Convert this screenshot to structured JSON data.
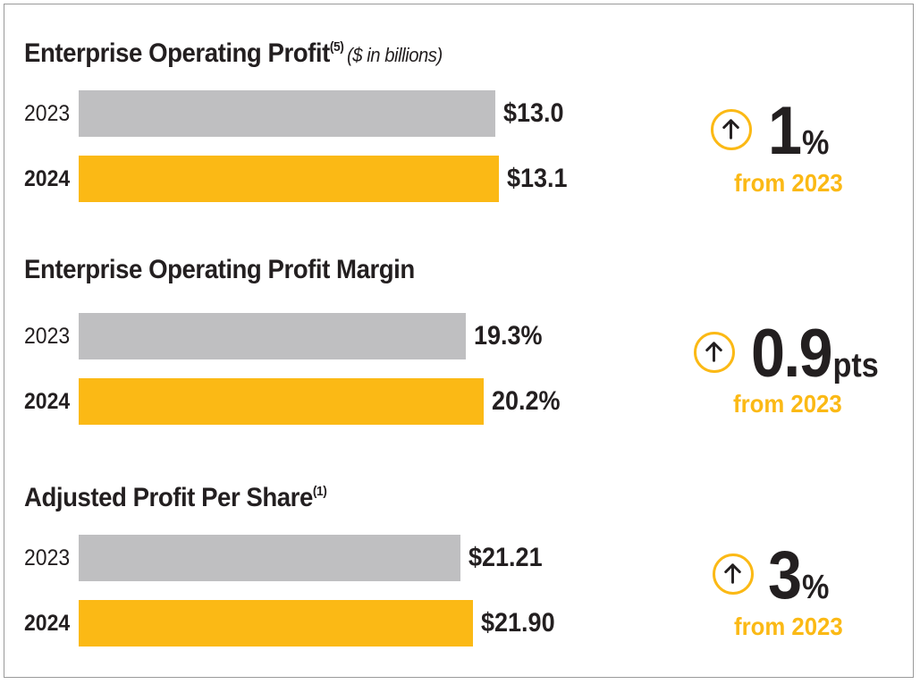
{
  "colors": {
    "bar_2023": "#bfbfc1",
    "bar_2024": "#fbb915",
    "accent": "#fbb915",
    "text": "#231f20"
  },
  "chart_data": [
    {
      "type": "bar",
      "orientation": "horizontal",
      "title": "Enterprise Operating Profit",
      "title_footnote": "(5)",
      "unit": "($ in billions)",
      "categories": [
        "2023",
        "2024"
      ],
      "values": [
        13.0,
        13.1
      ],
      "value_labels": [
        "$13.0",
        "$13.1"
      ],
      "change": {
        "icon": "up-arrow-icon",
        "value": "1",
        "unit": "%",
        "caption": "from 2023"
      }
    },
    {
      "type": "bar",
      "orientation": "horizontal",
      "title": "Enterprise Operating Profit Margin",
      "title_footnote": "",
      "unit": "",
      "categories": [
        "2023",
        "2024"
      ],
      "values": [
        19.3,
        20.2
      ],
      "value_labels": [
        "19.3%",
        "20.2%"
      ],
      "change": {
        "icon": "up-arrow-icon",
        "value": "0.9",
        "unit": "pts",
        "caption": "from 2023"
      }
    },
    {
      "type": "bar",
      "orientation": "horizontal",
      "title": "Adjusted Profit Per Share",
      "title_footnote": "(1)",
      "unit": "",
      "categories": [
        "2023",
        "2024"
      ],
      "values": [
        21.21,
        21.9
      ],
      "value_labels": [
        "$21.21",
        "$21.90"
      ],
      "change": {
        "icon": "up-arrow-icon",
        "value": "3",
        "unit": "%",
        "caption": "from 2023"
      }
    }
  ]
}
